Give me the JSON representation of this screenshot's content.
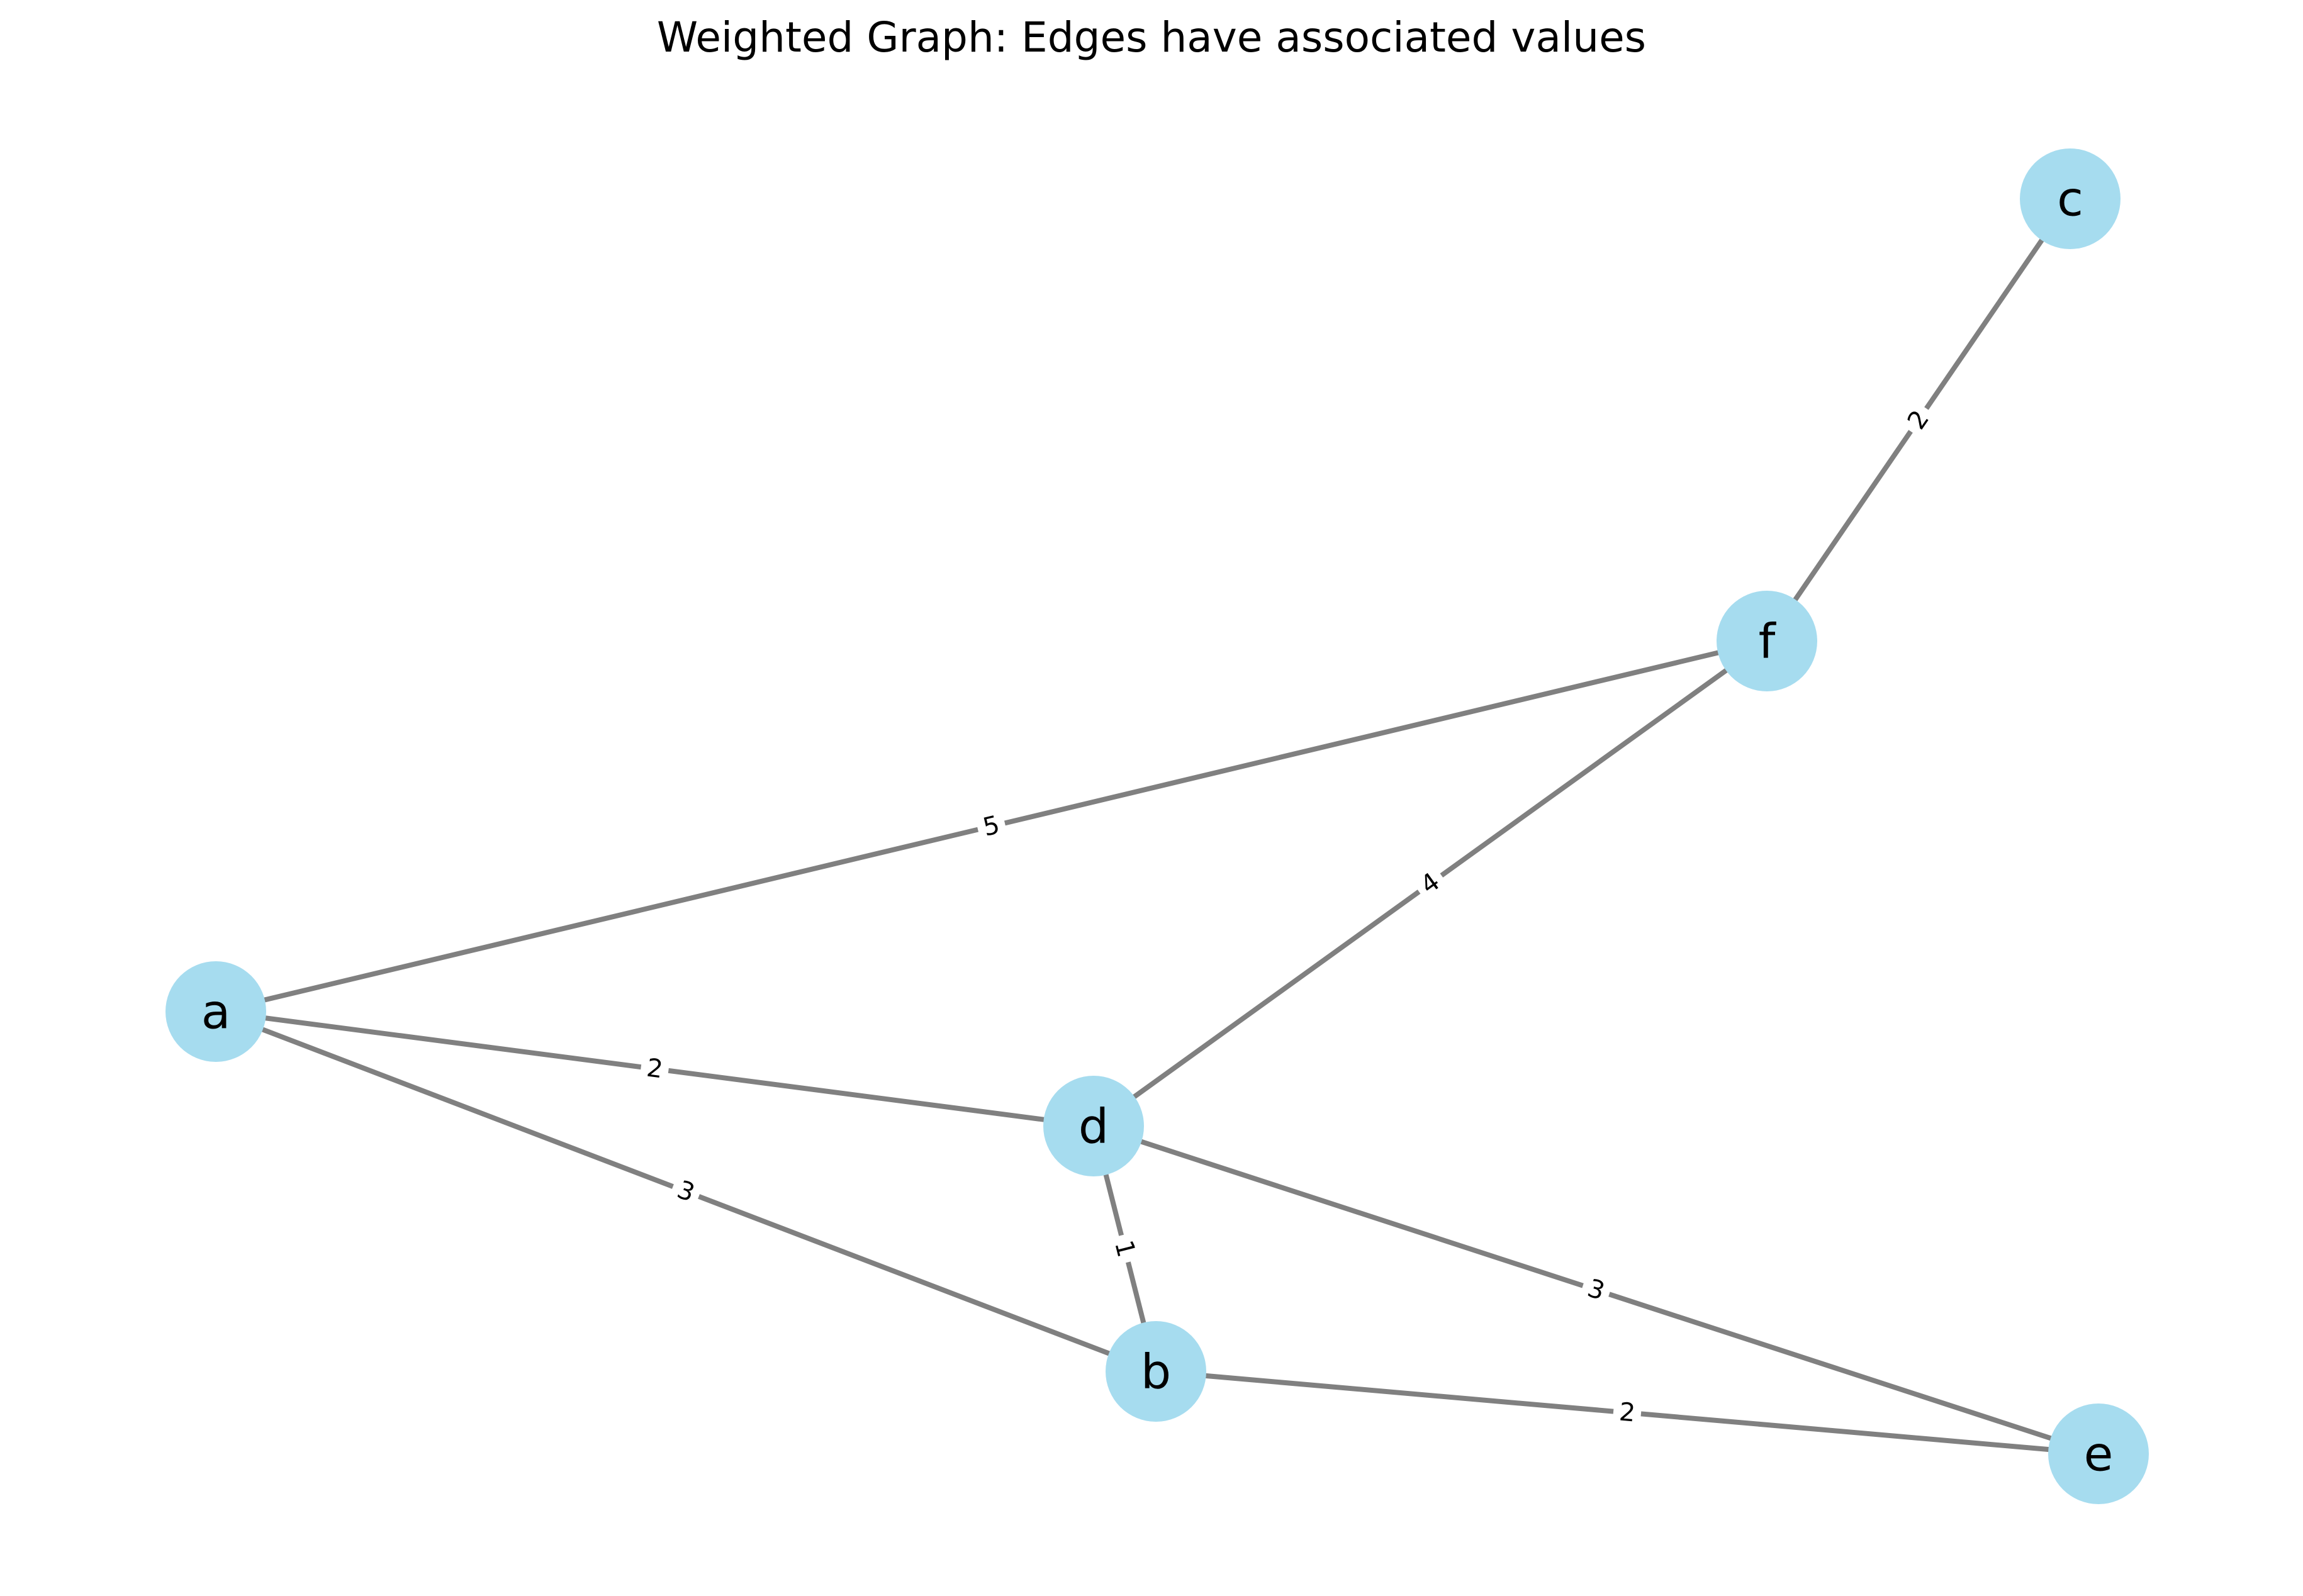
{
  "title": "Weighted Graph: Edges have associated values",
  "colors": {
    "node_fill": "#a6dcef",
    "edge_stroke": "#808080",
    "text": "#000000",
    "background": "#ffffff"
  },
  "nodes": [
    {
      "id": "a",
      "label": "a"
    },
    {
      "id": "b",
      "label": "b"
    },
    {
      "id": "c",
      "label": "c"
    },
    {
      "id": "d",
      "label": "d"
    },
    {
      "id": "e",
      "label": "e"
    },
    {
      "id": "f",
      "label": "f"
    }
  ],
  "edges": [
    {
      "source": "a",
      "target": "f",
      "weight": "5"
    },
    {
      "source": "a",
      "target": "d",
      "weight": "2"
    },
    {
      "source": "a",
      "target": "b",
      "weight": "3"
    },
    {
      "source": "d",
      "target": "f",
      "weight": "4"
    },
    {
      "source": "d",
      "target": "b",
      "weight": "1"
    },
    {
      "source": "d",
      "target": "e",
      "weight": "3"
    },
    {
      "source": "b",
      "target": "e",
      "weight": "2"
    },
    {
      "source": "f",
      "target": "c",
      "weight": "2"
    }
  ]
}
